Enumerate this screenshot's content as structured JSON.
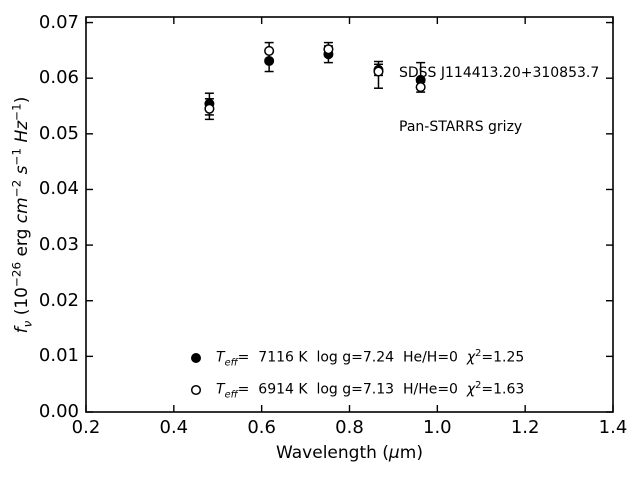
{
  "figure": {
    "annotation": {
      "line1": "SDSS J114413.20+310853.7",
      "line2": "Pan-STARRS grizy"
    }
  },
  "axes": {
    "xlabel_parts": [
      {
        "t": "Wavelength (",
        "s": "n"
      },
      {
        "t": "μ",
        "s": "i"
      },
      {
        "t": "m)",
        "s": "n"
      }
    ],
    "ylabel_parts": [
      {
        "t": "f",
        "s": "i"
      },
      {
        "t": "ν",
        "s": "sub"
      },
      {
        "t": " (10",
        "s": "n"
      },
      {
        "t": "−26",
        "s": "sup"
      },
      {
        "t": " erg ",
        "s": "n"
      },
      {
        "t": "cm",
        "s": "i"
      },
      {
        "t": "−2",
        "s": "sup"
      },
      {
        "t": " ",
        "s": "n"
      },
      {
        "t": "s",
        "s": "i"
      },
      {
        "t": "−1",
        "s": "sup"
      },
      {
        "t": " ",
        "s": "n"
      },
      {
        "t": "Hz",
        "s": "i"
      },
      {
        "t": "−1",
        "s": "sup"
      },
      {
        "t": ")",
        "s": "n"
      }
    ],
    "x_tick_labels": [
      "0.2",
      "0.4",
      "0.6",
      "0.8",
      "1.0",
      "1.2",
      "1.4"
    ],
    "y_tick_labels": [
      "0.00",
      "0.01",
      "0.02",
      "0.03",
      "0.04",
      "0.05",
      "0.06",
      "0.07"
    ]
  },
  "legend": {
    "rows": [
      {
        "marker": "filled-circle-icon",
        "parts": [
          {
            "t": "T",
            "s": "i"
          },
          {
            "t": "eff",
            "s": "sub"
          },
          {
            "t": "=  7116 K  log g=7.24  He/H=0  ",
            "s": "n"
          },
          {
            "t": "χ",
            "s": "i"
          },
          {
            "t": "2",
            "s": "sup"
          },
          {
            "t": "=1.25",
            "s": "n"
          }
        ]
      },
      {
        "marker": "open-circle-icon",
        "parts": [
          {
            "t": "T",
            "s": "i"
          },
          {
            "t": "eff",
            "s": "sub"
          },
          {
            "t": "=  6914 K  log g=7.13  H/He=0  ",
            "s": "n"
          },
          {
            "t": "χ",
            "s": "i"
          },
          {
            "t": "2",
            "s": "sup"
          },
          {
            "t": "=1.63",
            "s": "n"
          }
        ]
      }
    ]
  },
  "colors": {
    "foreground": "#000000",
    "background": "#ffffff"
  },
  "chart_data": {
    "type": "scatter",
    "title": "SDSS J114413.20+310853.7",
    "subtitle": "Pan-STARRS grizy",
    "xlabel": "Wavelength (μm)",
    "ylabel": "f_ν (10⁻²⁶ erg cm⁻² s⁻¹ Hz⁻¹)",
    "xlim": [
      0.2,
      1.4
    ],
    "ylim": [
      0.0,
      0.071
    ],
    "x_ticks": [
      0.2,
      0.4,
      0.6,
      0.8,
      1.0,
      1.2,
      1.4
    ],
    "y_ticks": [
      0.0,
      0.01,
      0.02,
      0.03,
      0.04,
      0.05,
      0.06,
      0.07
    ],
    "grid": false,
    "legend_position": "lower center inside, frameless",
    "tick_style": "inward ticks on all four spines",
    "series": [
      {
        "name": "T_eff= 7116 K  log g=7.24  He/H=0  χ²=1.25",
        "marker": "filled-circle",
        "color": "#000000",
        "points": [
          {
            "x": 0.481,
            "y": 0.0554,
            "y_lo": 0.0534,
            "y_hi": 0.0573
          },
          {
            "x": 0.617,
            "y": 0.0631,
            "y_lo": 0.0612,
            "y_hi": 0.065
          },
          {
            "x": 0.752,
            "y": 0.0643,
            "y_lo": 0.0628,
            "y_hi": 0.0658
          },
          {
            "x": 0.866,
            "y": 0.0615,
            "y_lo": 0.0605,
            "y_hi": 0.0625
          },
          {
            "x": 0.962,
            "y": 0.0597,
            "y_lo": 0.0586,
            "y_hi": 0.0628
          }
        ]
      },
      {
        "name": "T_eff= 6914 K  log g=7.13  H/He=0  χ²=1.63",
        "marker": "open-circle",
        "color": "#000000",
        "points": [
          {
            "x": 0.481,
            "y": 0.0545,
            "y_lo": 0.0526,
            "y_hi": 0.0563
          },
          {
            "x": 0.617,
            "y": 0.0649,
            "y_lo": 0.0634,
            "y_hi": 0.0664
          },
          {
            "x": 0.752,
            "y": 0.0652,
            "y_lo": 0.064,
            "y_hi": 0.0664
          },
          {
            "x": 0.866,
            "y": 0.0612,
            "y_lo": 0.0582,
            "y_hi": 0.063
          },
          {
            "x": 0.962,
            "y": 0.0584,
            "y_lo": 0.0575,
            "y_hi": 0.0593
          }
        ]
      }
    ]
  }
}
